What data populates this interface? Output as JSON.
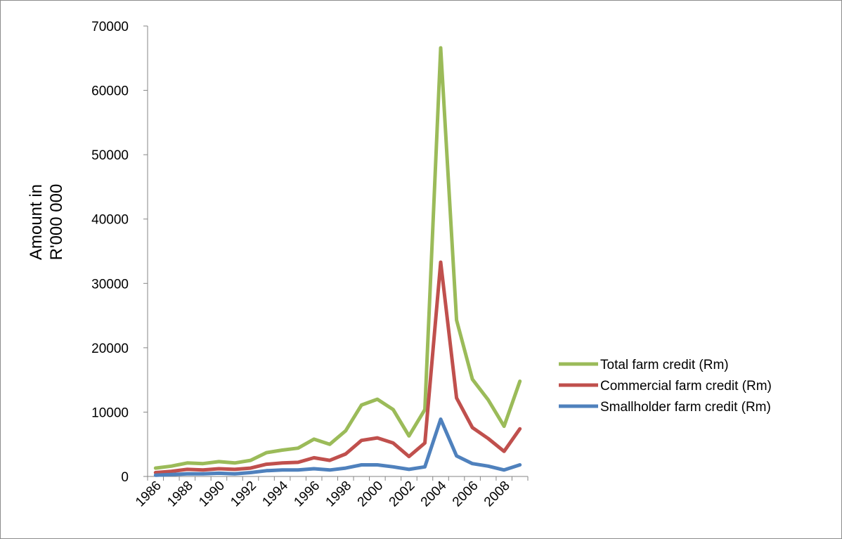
{
  "chart_data": {
    "type": "line",
    "title": "",
    "xlabel": "",
    "ylabel_lines": [
      "Amount in",
      "R'000 000"
    ],
    "x": [
      1986,
      1987,
      1988,
      1989,
      1990,
      1991,
      1992,
      1993,
      1994,
      1995,
      1996,
      1997,
      1998,
      1999,
      2000,
      2001,
      2002,
      2003,
      2004,
      2005,
      2006,
      2007,
      2008,
      2009
    ],
    "x_tick_labels": [
      "1986",
      "1988",
      "1990",
      "1992",
      "1994",
      "1996",
      "1998",
      "2000",
      "2002",
      "2004",
      "2006",
      "2008"
    ],
    "y_tick_labels": [
      "0",
      "10000",
      "20000",
      "30000",
      "40000",
      "50000",
      "60000",
      "70000"
    ],
    "ylim": [
      0,
      70000
    ],
    "grid": false,
    "legend_position": "right",
    "series": [
      {
        "name": "Total farm credit (Rm)",
        "color": "#9bbb59",
        "values": [
          1300,
          1600,
          2100,
          2000,
          2300,
          2100,
          2500,
          3700,
          4100,
          4400,
          5800,
          5000,
          7100,
          11100,
          12000,
          10400,
          6300,
          10400,
          66600,
          24300,
          15100,
          11900,
          7800,
          14800
        ]
      },
      {
        "name": "Commercial farm credit (Rm)",
        "color": "#c0504d",
        "values": [
          600,
          800,
          1100,
          1000,
          1200,
          1100,
          1300,
          1900,
          2100,
          2200,
          2900,
          2500,
          3500,
          5600,
          6000,
          5200,
          3100,
          5200,
          33300,
          12200,
          7600,
          5900,
          3900,
          7400
        ]
      },
      {
        "name": "Smallholder farm credit (Rm)",
        "color": "#4f81bd",
        "values": [
          200,
          300,
          400,
          400,
          500,
          400,
          600,
          900,
          1000,
          1000,
          1200,
          1000,
          1300,
          1800,
          1800,
          1500,
          1100,
          1500,
          8900,
          3200,
          2000,
          1600,
          1000,
          1800
        ]
      }
    ]
  }
}
